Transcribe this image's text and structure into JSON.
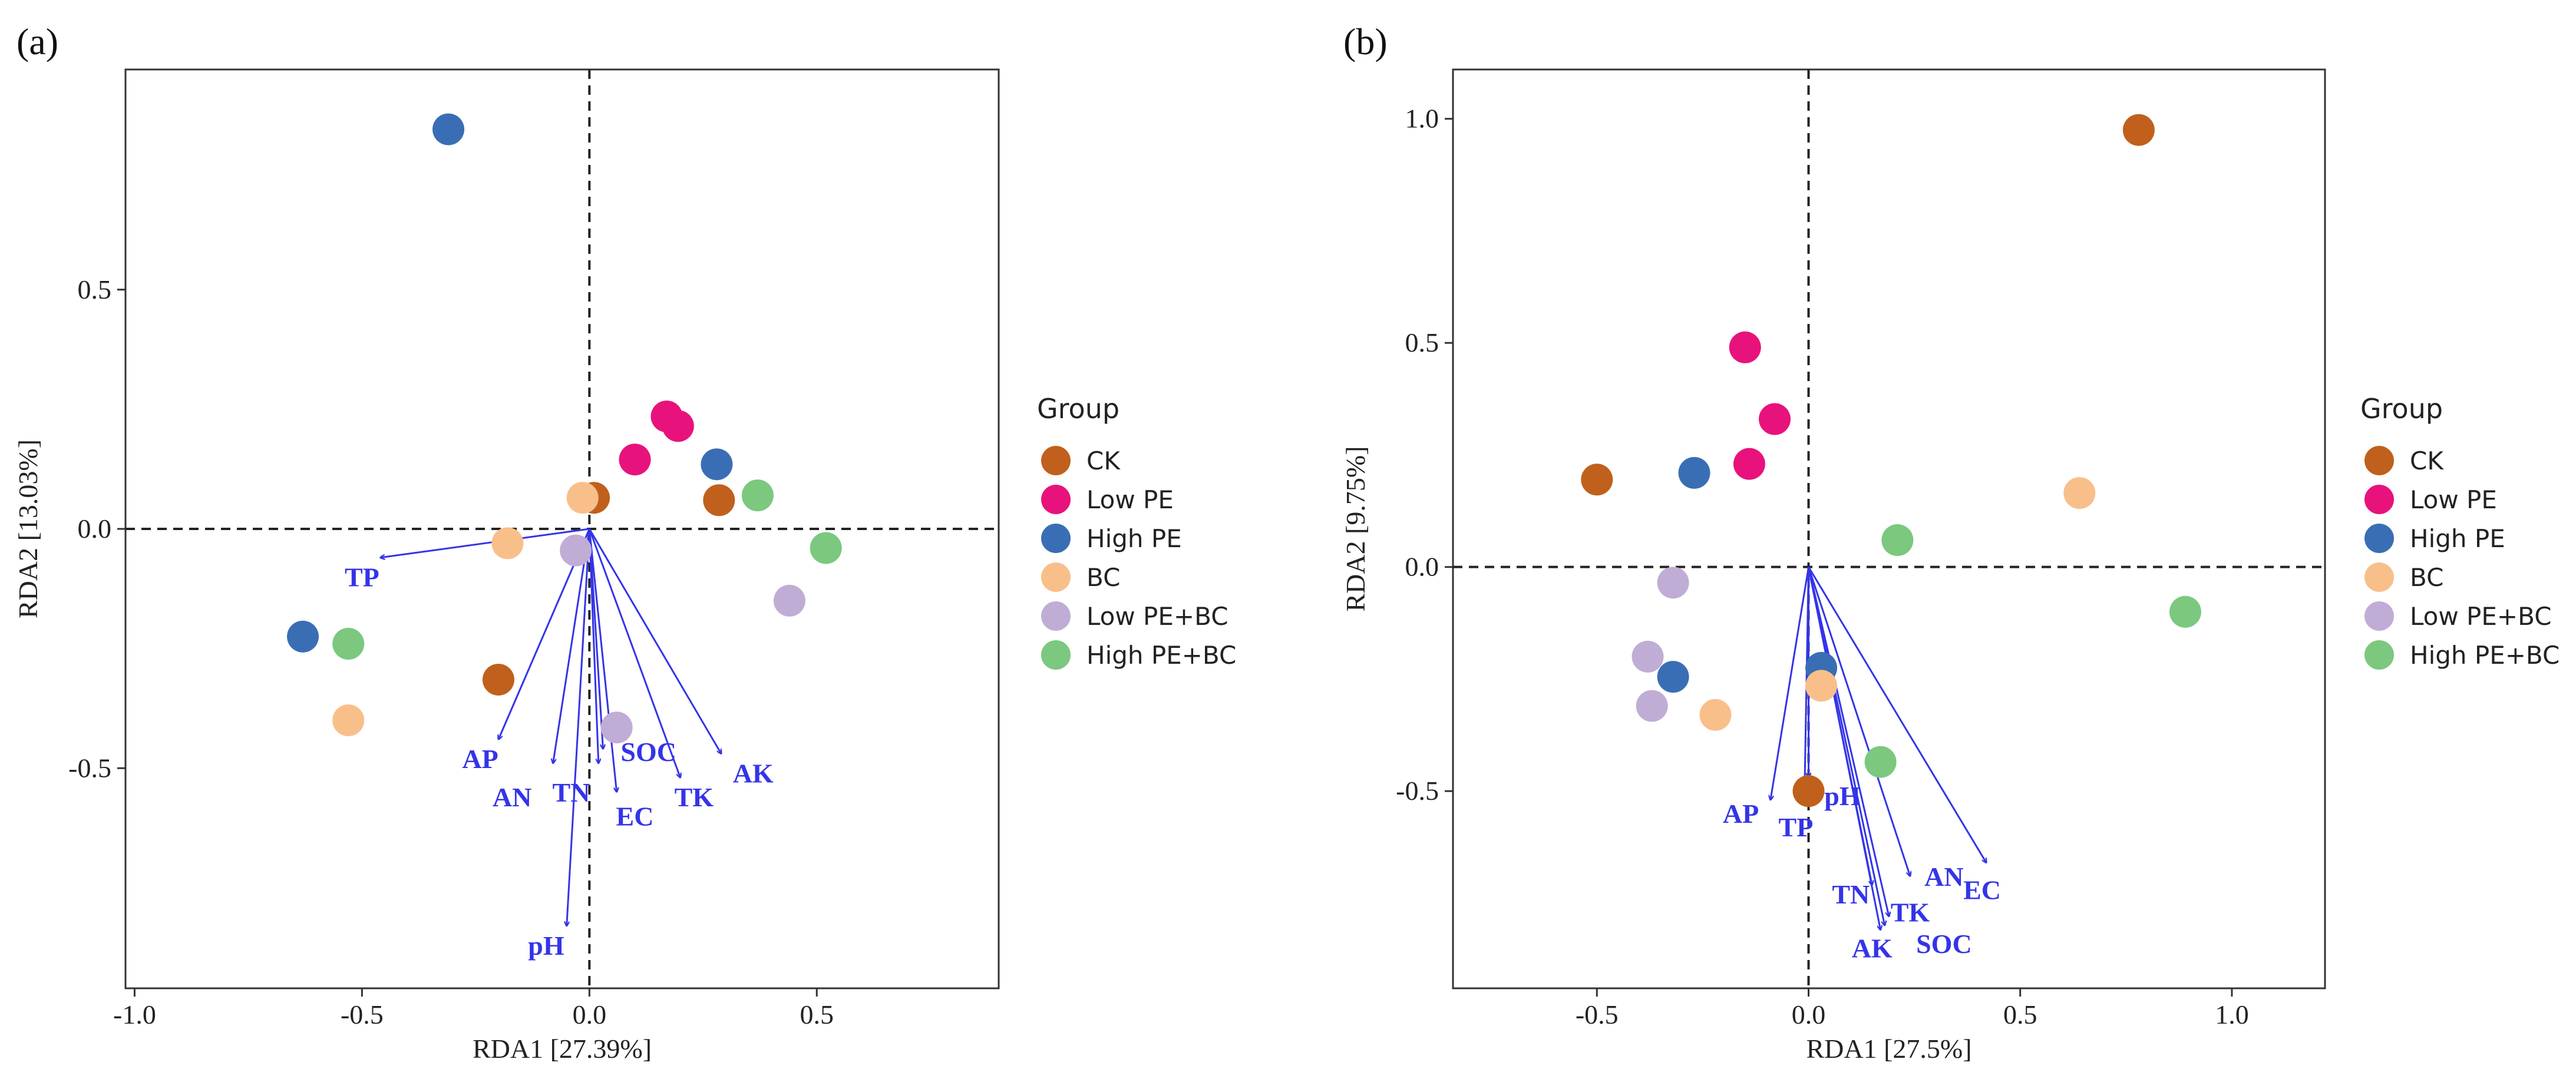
{
  "chart_data": [
    {
      "type": "scatter",
      "panel_label": "(a)",
      "xlabel": "RDA1 [27.39%]",
      "ylabel": "RDA2 [13.03%]",
      "xlim": [
        -1.02,
        0.9
      ],
      "ylim": [
        -0.96,
        0.96
      ],
      "xticks": [
        -1.0,
        -0.5,
        0.0,
        0.5
      ],
      "xtick_labels": [
        "-1.0",
        "-0.5",
        "0.0",
        "0.5"
      ],
      "yticks": [
        -0.5,
        0.0,
        0.5
      ],
      "ytick_labels": [
        "-0.5",
        "0.0",
        "0.5"
      ],
      "reference_lines": {
        "x": 0,
        "y": 0,
        "style": "dashed"
      },
      "legend": {
        "title": "Group",
        "placement": "right",
        "items": [
          {
            "label": "CK",
            "color": "#c0601c"
          },
          {
            "label": "Low PE",
            "color": "#e8127c"
          },
          {
            "label": "High PE",
            "color": "#3a6eb4"
          },
          {
            "label": "BC",
            "color": "#f9bf8a"
          },
          {
            "label": "Low PE+BC",
            "color": "#bfadd6"
          },
          {
            "label": "High PE+BC",
            "color": "#7bc87e"
          }
        ]
      },
      "series": [
        {
          "group": "CK",
          "color": "#c0601c",
          "points": [
            [
              0.01,
              0.065
            ],
            [
              0.285,
              0.06
            ],
            [
              -0.2,
              -0.315
            ]
          ]
        },
        {
          "group": "Low PE",
          "color": "#e8127c",
          "points": [
            [
              0.1,
              0.145
            ],
            [
              0.17,
              0.235
            ],
            [
              0.195,
              0.215
            ]
          ]
        },
        {
          "group": "High PE",
          "color": "#3a6eb4",
          "points": [
            [
              -0.31,
              0.835
            ],
            [
              0.28,
              0.135
            ],
            [
              -0.63,
              -0.225
            ]
          ]
        },
        {
          "group": "BC",
          "color": "#f9bf8a",
          "points": [
            [
              -0.015,
              0.065
            ],
            [
              -0.18,
              -0.03
            ],
            [
              -0.53,
              -0.4
            ]
          ]
        },
        {
          "group": "Low PE+BC",
          "color": "#bfadd6",
          "points": [
            [
              -0.03,
              -0.045
            ],
            [
              0.44,
              -0.15
            ],
            [
              0.06,
              -0.415
            ]
          ]
        },
        {
          "group": "High PE+BC",
          "color": "#7bc87e",
          "points": [
            [
              0.37,
              0.07
            ],
            [
              0.52,
              -0.04
            ],
            [
              -0.53,
              -0.24
            ]
          ]
        }
      ],
      "arrows": [
        {
          "label": "TP",
          "x": -0.46,
          "y": -0.06,
          "label_x": -0.5,
          "label_y": -0.1
        },
        {
          "label": "AP",
          "x": -0.2,
          "y": -0.44,
          "label_x": -0.24,
          "label_y": -0.48
        },
        {
          "label": "AN",
          "x": -0.08,
          "y": -0.49,
          "label_x": -0.17,
          "label_y": -0.56
        },
        {
          "label": "TN",
          "x": 0.02,
          "y": -0.49,
          "label_x": -0.04,
          "label_y": -0.55
        },
        {
          "label": "SOC",
          "x": 0.03,
          "y": -0.46,
          "label_x": 0.13,
          "label_y": -0.465
        },
        {
          "label": "EC",
          "x": 0.06,
          "y": -0.55,
          "label_x": 0.1,
          "label_y": -0.6
        },
        {
          "label": "TK",
          "x": 0.2,
          "y": -0.52,
          "label_x": 0.23,
          "label_y": -0.56
        },
        {
          "label": "AK",
          "x": 0.29,
          "y": -0.47,
          "label_x": 0.36,
          "label_y": -0.51
        },
        {
          "label": "pH",
          "x": -0.05,
          "y": -0.83,
          "label_x": -0.095,
          "label_y": -0.87
        }
      ]
    },
    {
      "type": "scatter",
      "panel_label": "(b)",
      "xlabel": "RDA1 [27.5%]",
      "ylabel": "RDA2 [9.75%]",
      "xlim": [
        -0.84,
        1.22
      ],
      "ylim": [
        -0.94,
        1.11
      ],
      "xticks": [
        -0.5,
        0.0,
        0.5,
        1.0
      ],
      "xtick_labels": [
        "-0.5",
        "0.0",
        "0.5",
        "1.0"
      ],
      "yticks": [
        -0.5,
        0.0,
        0.5,
        1.0
      ],
      "ytick_labels": [
        "-0.5",
        "0.0",
        "0.5",
        "1.0"
      ],
      "reference_lines": {
        "x": 0,
        "y": 0,
        "style": "dashed"
      },
      "legend": {
        "title": "Group",
        "placement": "right",
        "items": [
          {
            "label": "CK",
            "color": "#c0601c"
          },
          {
            "label": "Low PE",
            "color": "#e8127c"
          },
          {
            "label": "High PE",
            "color": "#3a6eb4"
          },
          {
            "label": "BC",
            "color": "#f9bf8a"
          },
          {
            "label": "Low PE+BC",
            "color": "#bfadd6"
          },
          {
            "label": "High PE+BC",
            "color": "#7bc87e"
          }
        ]
      },
      "series": [
        {
          "group": "CK",
          "color": "#c0601c",
          "points": [
            [
              0.78,
              0.975
            ],
            [
              -0.5,
              0.195
            ],
            [
              0.0,
              -0.5
            ]
          ]
        },
        {
          "group": "Low PE",
          "color": "#e8127c",
          "points": [
            [
              -0.15,
              0.49
            ],
            [
              -0.08,
              0.33
            ],
            [
              -0.14,
              0.23
            ]
          ]
        },
        {
          "group": "High PE",
          "color": "#3a6eb4",
          "points": [
            [
              -0.27,
              0.21
            ],
            [
              -0.32,
              -0.245
            ],
            [
              0.03,
              -0.225
            ]
          ]
        },
        {
          "group": "BC",
          "color": "#f9bf8a",
          "points": [
            [
              0.64,
              0.165
            ],
            [
              -0.22,
              -0.33
            ],
            [
              0.03,
              -0.265
            ]
          ]
        },
        {
          "group": "Low PE+BC",
          "color": "#bfadd6",
          "points": [
            [
              -0.32,
              -0.035
            ],
            [
              -0.38,
              -0.2
            ],
            [
              -0.37,
              -0.31
            ]
          ]
        },
        {
          "group": "High PE+BC",
          "color": "#7bc87e",
          "points": [
            [
              0.21,
              0.06
            ],
            [
              0.89,
              -0.1
            ],
            [
              0.17,
              -0.435
            ]
          ]
        }
      ],
      "arrows": [
        {
          "label": "AP",
          "x": -0.09,
          "y": -0.52,
          "label_x": -0.16,
          "label_y": -0.55
        },
        {
          "label": "TP",
          "x": -0.01,
          "y": -0.53,
          "label_x": -0.03,
          "label_y": -0.58
        },
        {
          "label": "pH",
          "x": 0.0,
          "y": -0.47,
          "label_x": 0.08,
          "label_y": -0.51
        },
        {
          "label": "TN",
          "x": 0.15,
          "y": -0.71,
          "label_x": 0.1,
          "label_y": -0.73
        },
        {
          "label": "TK",
          "x": 0.19,
          "y": -0.78,
          "label_x": 0.24,
          "label_y": -0.77
        },
        {
          "label": "AK",
          "x": 0.17,
          "y": -0.81,
          "label_x": 0.15,
          "label_y": -0.85
        },
        {
          "label": "SOC",
          "x": 0.18,
          "y": -0.8,
          "label_x": 0.32,
          "label_y": -0.84
        },
        {
          "label": "AN",
          "x": 0.24,
          "y": -0.69,
          "label_x": 0.32,
          "label_y": -0.69
        },
        {
          "label": "EC",
          "x": 0.42,
          "y": -0.66,
          "label_x": 0.41,
          "label_y": -0.72
        }
      ]
    }
  ]
}
